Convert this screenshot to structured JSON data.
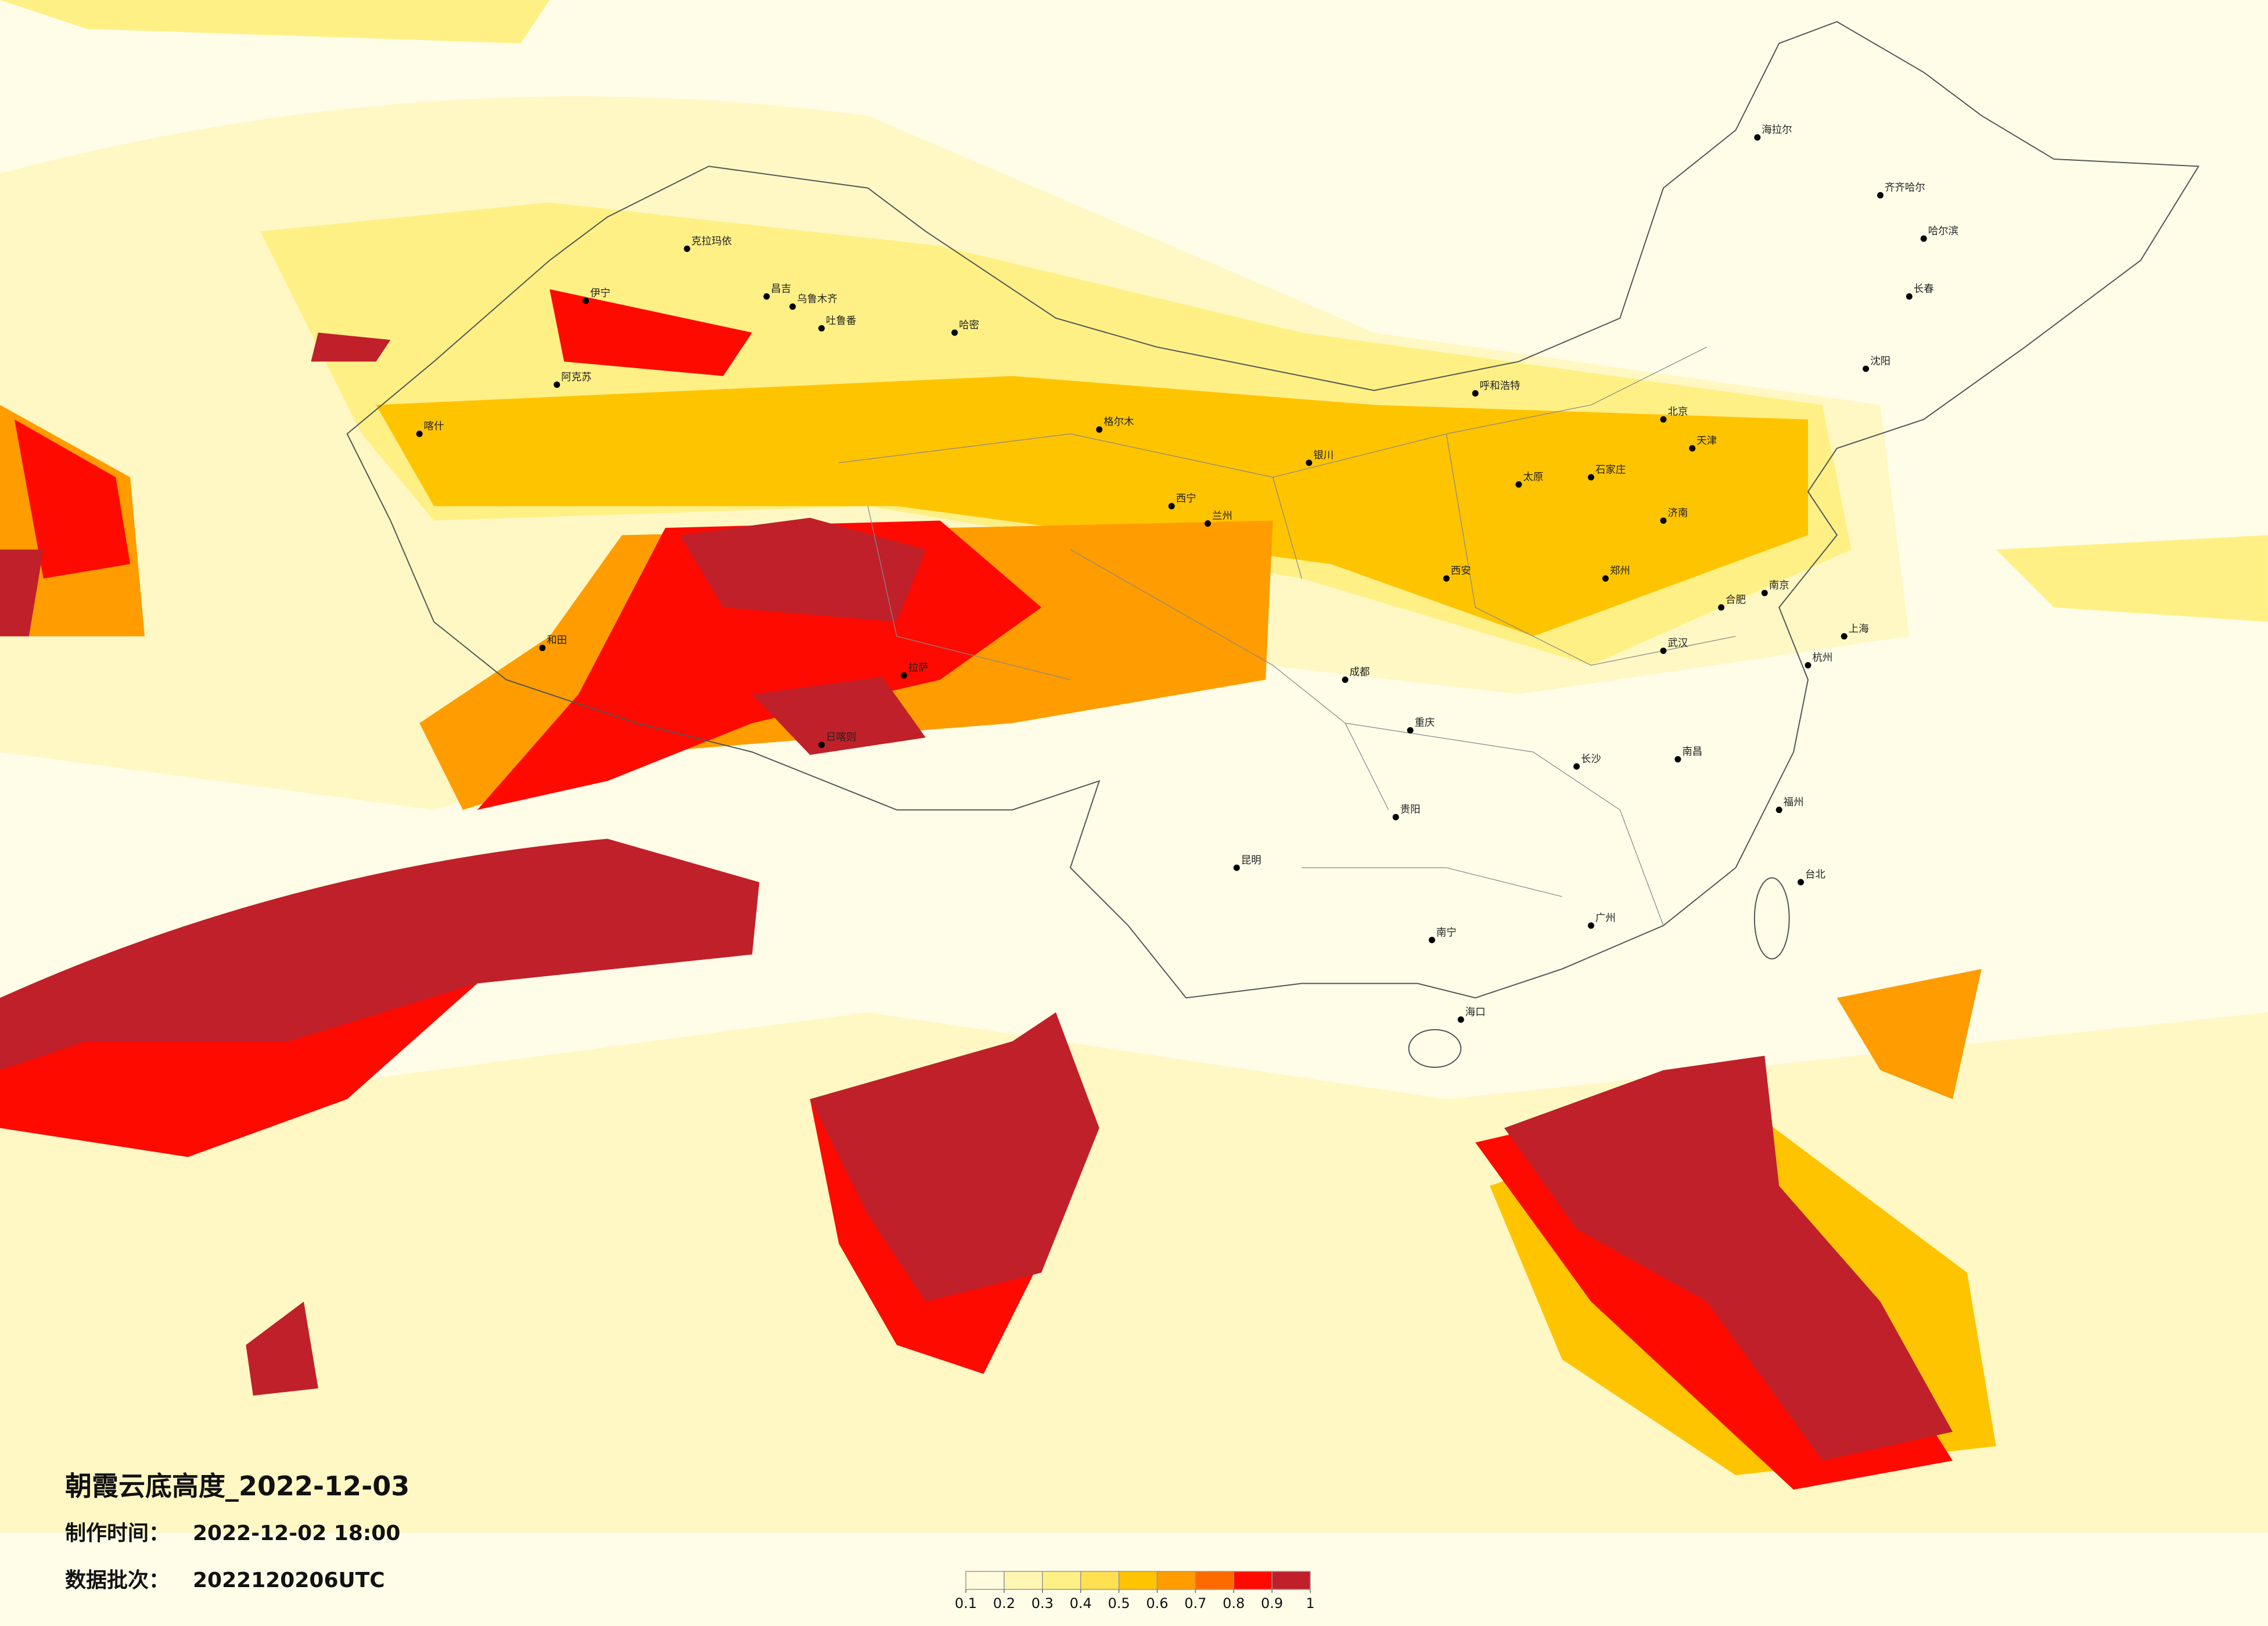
{
  "title": "朝霞云底高度_2022-12-03",
  "made_label": "制作时间：",
  "made_time": "2022-12-02 18:00",
  "batch_label": "数据批次：",
  "batch": "2022120206UTC",
  "legend": {
    "colors": [
      "#fffbdc",
      "#fff6b4",
      "#fff086",
      "#ffe050",
      "#ffc400",
      "#ff9c00",
      "#ff6a00",
      "#ff0a00",
      "#c0202a"
    ],
    "ticks": [
      0.1,
      0.2,
      0.3,
      0.4,
      0.5,
      0.6,
      0.7,
      0.8,
      0.9,
      1
    ]
  },
  "cities": [
    "克拉玛依",
    "昌吉",
    "乌鲁木齐",
    "吐鲁番",
    "哈密",
    "伊宁",
    "阿克苏",
    "喀什",
    "和田",
    "拉萨",
    "日喀则",
    "格尔木",
    "西宁",
    "兰州",
    "银川",
    "呼和浩特",
    "北京",
    "天津",
    "石家庄",
    "太原",
    "郑州",
    "西安",
    "成都",
    "重庆",
    "武汉",
    "长沙",
    "南昌",
    "杭州",
    "上海",
    "贵阳",
    "昆明",
    "南宁",
    "广州",
    "福州",
    "海口",
    "哈尔滨",
    "长春",
    "沈阳",
    "齐齐哈尔",
    "海拉尔",
    "台北",
    "济南",
    "合肥",
    "南京"
  ]
}
